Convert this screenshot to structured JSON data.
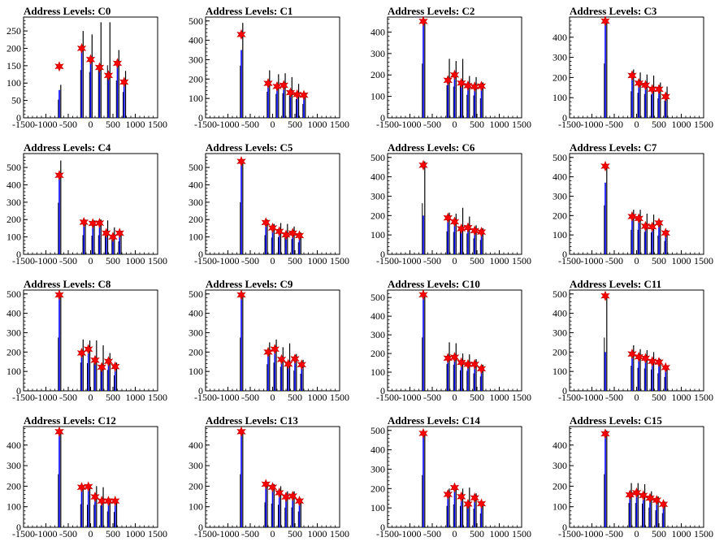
{
  "chart_data": [
    {
      "type": "bar",
      "title": "Address Levels: C0",
      "xlim": [
        -1500,
        1500
      ],
      "ylim": [
        0,
        290
      ],
      "yticks": [
        0,
        50,
        100,
        150,
        200,
        250
      ],
      "xticks": [
        -1500,
        -1000,
        -500,
        0,
        500,
        1000,
        1500
      ],
      "peaks": [
        {
          "x": -700,
          "black": 95,
          "blue": 80,
          "star": 148
        },
        {
          "x": -200,
          "black": 250,
          "blue": 200,
          "star": 200
        },
        {
          "x": 0,
          "black": 240,
          "blue": 165,
          "star": 168
        },
        {
          "x": 200,
          "black": 275,
          "blue": 145,
          "star": 145
        },
        {
          "x": 400,
          "black": 275,
          "blue": 120,
          "star": 122
        },
        {
          "x": 600,
          "black": 195,
          "blue": 155,
          "star": 157
        },
        {
          "x": 750,
          "black": 135,
          "blue": 100,
          "star": 103
        }
      ]
    },
    {
      "type": "bar",
      "title": "Address Levels: C1",
      "xlim": [
        -1500,
        1500
      ],
      "ylim": [
        0,
        520
      ],
      "yticks": [
        0,
        100,
        200,
        300,
        400,
        500
      ],
      "xticks": [
        -1500,
        -1000,
        -500,
        0,
        500,
        1000,
        1500
      ],
      "peaks": [
        {
          "x": -700,
          "black": 490,
          "blue": 350,
          "star": 430
        },
        {
          "x": -100,
          "black": 245,
          "blue": 175,
          "star": 178
        },
        {
          "x": 100,
          "black": 225,
          "blue": 160,
          "star": 162
        },
        {
          "x": 250,
          "black": 230,
          "blue": 165,
          "star": 168
        },
        {
          "x": 400,
          "black": 210,
          "blue": 128,
          "star": 130
        },
        {
          "x": 550,
          "black": 175,
          "blue": 118,
          "star": 120
        },
        {
          "x": 700,
          "black": 130,
          "blue": 115,
          "star": 117
        }
      ]
    },
    {
      "type": "bar",
      "title": "Address Levels: C2",
      "xlim": [
        -1500,
        1500
      ],
      "ylim": [
        0,
        470
      ],
      "yticks": [
        0,
        100,
        200,
        300,
        400
      ],
      "xticks": [
        -1500,
        -1000,
        -500,
        0,
        500,
        1000,
        1500
      ],
      "peaks": [
        {
          "x": -700,
          "black": 460,
          "blue": 450,
          "star": 450
        },
        {
          "x": -150,
          "black": 275,
          "blue": 170,
          "star": 175
        },
        {
          "x": 0,
          "black": 265,
          "blue": 195,
          "star": 200
        },
        {
          "x": 150,
          "black": 275,
          "blue": 160,
          "star": 162
        },
        {
          "x": 300,
          "black": 195,
          "blue": 145,
          "star": 150
        },
        {
          "x": 450,
          "black": 190,
          "blue": 140,
          "star": 145
        },
        {
          "x": 600,
          "black": 165,
          "blue": 145,
          "star": 148
        }
      ]
    },
    {
      "type": "bar",
      "title": "Address Levels: C3",
      "xlim": [
        -1500,
        1500
      ],
      "ylim": [
        0,
        500
      ],
      "yticks": [
        0,
        100,
        200,
        300,
        400
      ],
      "xticks": [
        -1500,
        -1000,
        -500,
        0,
        500,
        1000,
        1500
      ],
      "peaks": [
        {
          "x": -700,
          "black": 490,
          "blue": 480,
          "star": 480
        },
        {
          "x": -100,
          "black": 240,
          "blue": 205,
          "star": 210
        },
        {
          "x": 50,
          "black": 225,
          "blue": 170,
          "star": 172
        },
        {
          "x": 200,
          "black": 215,
          "blue": 160,
          "star": 162
        },
        {
          "x": 350,
          "black": 210,
          "blue": 140,
          "star": 142
        },
        {
          "x": 500,
          "black": 175,
          "blue": 140,
          "star": 142
        },
        {
          "x": 650,
          "black": 155,
          "blue": 100,
          "star": 105
        }
      ]
    },
    {
      "type": "bar",
      "title": "Address Levels: C4",
      "xlim": [
        -1500,
        1500
      ],
      "ylim": [
        0,
        580
      ],
      "yticks": [
        0,
        100,
        200,
        300,
        400,
        500
      ],
      "xticks": [
        -1500,
        -1000,
        -500,
        0,
        500,
        1000,
        1500
      ],
      "peaks": [
        {
          "x": -700,
          "black": 540,
          "blue": 450,
          "star": 455
        },
        {
          "x": -150,
          "black": 200,
          "blue": 185,
          "star": 185
        },
        {
          "x": 50,
          "black": 195,
          "blue": 175,
          "star": 178
        },
        {
          "x": 200,
          "black": 200,
          "blue": 180,
          "star": 180
        },
        {
          "x": 350,
          "black": 195,
          "blue": 120,
          "star": 122
        },
        {
          "x": 500,
          "black": 155,
          "blue": 95,
          "star": 100
        },
        {
          "x": 650,
          "black": 135,
          "blue": 120,
          "star": 122
        }
      ]
    },
    {
      "type": "bar",
      "title": "Address Levels: C5",
      "xlim": [
        -1500,
        1500
      ],
      "ylim": [
        0,
        580
      ],
      "yticks": [
        0,
        100,
        200,
        300,
        400,
        500
      ],
      "xticks": [
        -1500,
        -1000,
        -500,
        0,
        500,
        1000,
        1500
      ],
      "peaks": [
        {
          "x": -700,
          "black": 545,
          "blue": 535,
          "star": 535
        },
        {
          "x": -150,
          "black": 200,
          "blue": 180,
          "star": 183
        },
        {
          "x": 0,
          "black": 175,
          "blue": 150,
          "star": 152
        },
        {
          "x": 150,
          "black": 180,
          "blue": 130,
          "star": 132
        },
        {
          "x": 300,
          "black": 175,
          "blue": 110,
          "star": 112
        },
        {
          "x": 450,
          "black": 160,
          "blue": 120,
          "star": 122
        },
        {
          "x": 600,
          "black": 125,
          "blue": 105,
          "star": 108
        }
      ]
    },
    {
      "type": "bar",
      "title": "Address Levels: C6",
      "xlim": [
        -1500,
        1500
      ],
      "ylim": [
        0,
        520
      ],
      "yticks": [
        0,
        100,
        200,
        300,
        400,
        500
      ],
      "xticks": [
        -1500,
        -1000,
        -500,
        0,
        500,
        1000,
        1500
      ],
      "peaks": [
        {
          "x": -700,
          "black": 480,
          "blue": 200,
          "star": 460
        },
        {
          "x": -150,
          "black": 215,
          "blue": 185,
          "star": 188
        },
        {
          "x": 0,
          "black": 210,
          "blue": 165,
          "star": 168
        },
        {
          "x": 150,
          "black": 240,
          "blue": 130,
          "star": 132
        },
        {
          "x": 300,
          "black": 195,
          "blue": 135,
          "star": 138
        },
        {
          "x": 450,
          "black": 150,
          "blue": 120,
          "star": 122
        },
        {
          "x": 600,
          "black": 135,
          "blue": 110,
          "star": 115
        }
      ]
    },
    {
      "type": "bar",
      "title": "Address Levels: C7",
      "xlim": [
        -1500,
        1500
      ],
      "ylim": [
        0,
        520
      ],
      "yticks": [
        0,
        100,
        200,
        300,
        400,
        500
      ],
      "xticks": [
        -1500,
        -1000,
        -500,
        0,
        500,
        1000,
        1500
      ],
      "peaks": [
        {
          "x": -700,
          "black": 460,
          "blue": 370,
          "star": 455
        },
        {
          "x": -100,
          "black": 230,
          "blue": 190,
          "star": 195
        },
        {
          "x": 50,
          "black": 230,
          "blue": 180,
          "star": 185
        },
        {
          "x": 200,
          "black": 210,
          "blue": 140,
          "star": 145
        },
        {
          "x": 350,
          "black": 205,
          "blue": 140,
          "star": 142
        },
        {
          "x": 500,
          "black": 175,
          "blue": 160,
          "star": 162
        },
        {
          "x": 650,
          "black": 125,
          "blue": 105,
          "star": 110
        }
      ]
    },
    {
      "type": "bar",
      "title": "Address Levels: C8",
      "xlim": [
        -1500,
        1500
      ],
      "ylim": [
        0,
        520
      ],
      "yticks": [
        0,
        100,
        200,
        300,
        400,
        500
      ],
      "xticks": [
        -1500,
        -1000,
        -500,
        0,
        500,
        1000,
        1500
      ],
      "peaks": [
        {
          "x": -700,
          "black": 500,
          "blue": 490,
          "star": 495
        },
        {
          "x": -200,
          "black": 265,
          "blue": 190,
          "star": 195
        },
        {
          "x": -50,
          "black": 260,
          "blue": 210,
          "star": 215
        },
        {
          "x": 100,
          "black": 260,
          "blue": 155,
          "star": 158
        },
        {
          "x": 250,
          "black": 235,
          "blue": 120,
          "star": 122
        },
        {
          "x": 400,
          "black": 195,
          "blue": 150,
          "star": 152
        },
        {
          "x": 550,
          "black": 145,
          "blue": 120,
          "star": 125
        }
      ]
    },
    {
      "type": "bar",
      "title": "Address Levels: C9",
      "xlim": [
        -1500,
        1500
      ],
      "ylim": [
        0,
        520
      ],
      "yticks": [
        0,
        100,
        200,
        300,
        400,
        500
      ],
      "xticks": [
        -1500,
        -1000,
        -500,
        0,
        500,
        1000,
        1500
      ],
      "peaks": [
        {
          "x": -700,
          "black": 500,
          "blue": 480,
          "star": 495
        },
        {
          "x": -100,
          "black": 250,
          "blue": 195,
          "star": 200
        },
        {
          "x": 50,
          "black": 265,
          "blue": 210,
          "star": 215
        },
        {
          "x": 200,
          "black": 225,
          "blue": 160,
          "star": 162
        },
        {
          "x": 350,
          "black": 245,
          "blue": 135,
          "star": 138
        },
        {
          "x": 500,
          "black": 190,
          "blue": 160,
          "star": 165
        },
        {
          "x": 650,
          "black": 160,
          "blue": 130,
          "star": 135
        }
      ]
    },
    {
      "type": "bar",
      "title": "Address Levels: C10",
      "xlim": [
        -1500,
        1500
      ],
      "ylim": [
        0,
        540
      ],
      "yticks": [
        0,
        100,
        200,
        300,
        400,
        500
      ],
      "xticks": [
        -1500,
        -1000,
        -500,
        0,
        500,
        1000,
        1500
      ],
      "peaks": [
        {
          "x": -700,
          "black": 520,
          "blue": 510,
          "star": 515
        },
        {
          "x": -150,
          "black": 260,
          "blue": 170,
          "star": 175
        },
        {
          "x": 0,
          "black": 255,
          "blue": 175,
          "star": 180
        },
        {
          "x": 150,
          "black": 200,
          "blue": 150,
          "star": 152
        },
        {
          "x": 300,
          "black": 195,
          "blue": 140,
          "star": 142
        },
        {
          "x": 450,
          "black": 170,
          "blue": 140,
          "star": 142
        },
        {
          "x": 600,
          "black": 140,
          "blue": 115,
          "star": 118
        }
      ]
    },
    {
      "type": "bar",
      "title": "Address Levels: C11",
      "xlim": [
        -1500,
        1500
      ],
      "ylim": [
        0,
        520
      ],
      "yticks": [
        0,
        100,
        200,
        300,
        400,
        500
      ],
      "xticks": [
        -1500,
        -1000,
        -500,
        0,
        500,
        1000,
        1500
      ],
      "peaks": [
        {
          "x": -700,
          "black": 500,
          "blue": 200,
          "star": 490
        },
        {
          "x": -100,
          "black": 235,
          "blue": 185,
          "star": 190
        },
        {
          "x": 50,
          "black": 215,
          "blue": 170,
          "star": 175
        },
        {
          "x": 200,
          "black": 210,
          "blue": 165,
          "star": 168
        },
        {
          "x": 350,
          "black": 200,
          "blue": 150,
          "star": 152
        },
        {
          "x": 500,
          "black": 165,
          "blue": 145,
          "star": 148
        },
        {
          "x": 650,
          "black": 130,
          "blue": 120,
          "star": 120
        }
      ]
    },
    {
      "type": "bar",
      "title": "Address Levels: C12",
      "xlim": [
        -1500,
        1500
      ],
      "ylim": [
        0,
        490
      ],
      "yticks": [
        0,
        100,
        200,
        300,
        400
      ],
      "xticks": [
        -1500,
        -1000,
        -500,
        0,
        500,
        1000,
        1500
      ],
      "peaks": [
        {
          "x": -700,
          "black": 470,
          "blue": 460,
          "star": 465
        },
        {
          "x": -200,
          "black": 205,
          "blue": 195,
          "star": 195
        },
        {
          "x": -50,
          "black": 200,
          "blue": 195,
          "star": 198
        },
        {
          "x": 100,
          "black": 200,
          "blue": 145,
          "star": 148
        },
        {
          "x": 250,
          "black": 195,
          "blue": 125,
          "star": 128
        },
        {
          "x": 400,
          "black": 140,
          "blue": 125,
          "star": 128
        },
        {
          "x": 550,
          "black": 135,
          "blue": 125,
          "star": 128
        }
      ]
    },
    {
      "type": "bar",
      "title": "Address Levels: C13",
      "xlim": [
        -1500,
        1500
      ],
      "ylim": [
        0,
        490
      ],
      "yticks": [
        0,
        100,
        200,
        300,
        400
      ],
      "xticks": [
        -1500,
        -1000,
        -500,
        0,
        500,
        1000,
        1500
      ],
      "peaks": [
        {
          "x": -700,
          "black": 470,
          "blue": 460,
          "star": 465
        },
        {
          "x": -150,
          "black": 220,
          "blue": 205,
          "star": 210
        },
        {
          "x": 0,
          "black": 210,
          "blue": 190,
          "star": 195
        },
        {
          "x": 150,
          "black": 200,
          "blue": 165,
          "star": 168
        },
        {
          "x": 300,
          "black": 175,
          "blue": 145,
          "star": 148
        },
        {
          "x": 450,
          "black": 175,
          "blue": 150,
          "star": 152
        },
        {
          "x": 600,
          "black": 140,
          "blue": 125,
          "star": 128
        }
      ]
    },
    {
      "type": "bar",
      "title": "Address Levels: C14",
      "xlim": [
        -1500,
        1500
      ],
      "ylim": [
        0,
        520
      ],
      "yticks": [
        0,
        100,
        200,
        300,
        400,
        500
      ],
      "xticks": [
        -1500,
        -1000,
        -500,
        0,
        500,
        1000,
        1500
      ],
      "peaks": [
        {
          "x": -700,
          "black": 490,
          "blue": 470,
          "star": 485
        },
        {
          "x": -150,
          "black": 200,
          "blue": 165,
          "star": 170
        },
        {
          "x": 0,
          "black": 215,
          "blue": 200,
          "star": 205
        },
        {
          "x": 150,
          "black": 200,
          "blue": 155,
          "star": 158
        },
        {
          "x": 300,
          "black": 205,
          "blue": 115,
          "star": 120
        },
        {
          "x": 450,
          "black": 175,
          "blue": 150,
          "star": 152
        },
        {
          "x": 600,
          "black": 130,
          "blue": 120,
          "star": 122
        }
      ]
    },
    {
      "type": "bar",
      "title": "Address Levels: C15",
      "xlim": [
        -1500,
        1500
      ],
      "ylim": [
        0,
        490
      ],
      "yticks": [
        0,
        100,
        200,
        300,
        400
      ],
      "xticks": [
        -1500,
        -1000,
        -500,
        0,
        500,
        1000,
        1500
      ],
      "peaks": [
        {
          "x": -700,
          "black": 470,
          "blue": 460,
          "star": 455
        },
        {
          "x": -150,
          "black": 215,
          "blue": 155,
          "star": 158
        },
        {
          "x": 0,
          "black": 215,
          "blue": 165,
          "star": 168
        },
        {
          "x": 150,
          "black": 210,
          "blue": 150,
          "star": 155
        },
        {
          "x": 300,
          "black": 175,
          "blue": 140,
          "star": 142
        },
        {
          "x": 450,
          "black": 150,
          "blue": 130,
          "star": 132
        },
        {
          "x": 600,
          "black": 125,
          "blue": 110,
          "star": 112
        }
      ]
    }
  ],
  "colors": {
    "black_series": "#000000",
    "blue_series": "#0000ff",
    "star_fill": "#ff0000",
    "star_stroke": "#cc0000",
    "axis": "#000000"
  }
}
